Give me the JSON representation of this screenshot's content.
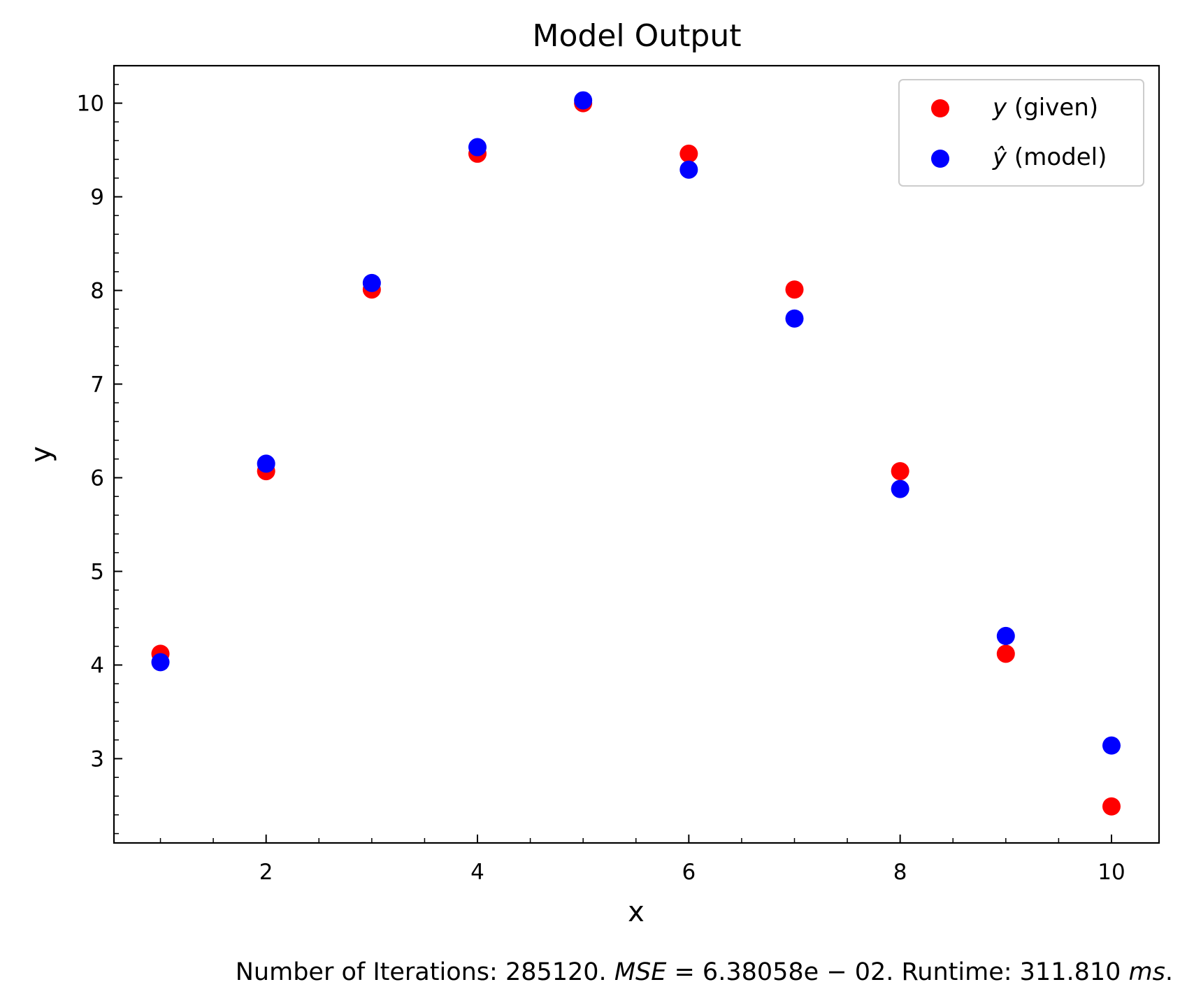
{
  "chart_data": {
    "type": "scatter",
    "title": "Model Output",
    "xlabel": "x",
    "ylabel": "y",
    "xlim": [
      0.56,
      10.45
    ],
    "ylim": [
      2.1,
      10.4
    ],
    "xticks": [
      2,
      4,
      6,
      8,
      10
    ],
    "yticks": [
      3,
      4,
      5,
      6,
      7,
      8,
      9,
      10
    ],
    "grid": false,
    "legend_position": "top-right",
    "x": [
      1,
      2,
      3,
      4,
      5,
      6,
      7,
      8,
      9,
      10
    ],
    "series": [
      {
        "name": "y (given)",
        "legend_math": "y",
        "legend_text": " (given)",
        "color": "#ff0000",
        "values": [
          4.12,
          6.07,
          8.01,
          9.46,
          10.0,
          9.46,
          8.01,
          6.07,
          4.12,
          2.49
        ]
      },
      {
        "name": "ŷ (model)",
        "legend_math": "ŷ",
        "legend_text": " (model)",
        "color": "#0000ff",
        "values": [
          4.03,
          6.15,
          8.08,
          9.53,
          10.03,
          9.29,
          7.7,
          5.88,
          4.31,
          3.14
        ]
      }
    ],
    "caption": {
      "iterations_text": "Number of Iterations: 285120. ",
      "mse_label": "MSE",
      "mse_value": " = 6.38058e − 02. Runtime: 311.810 ",
      "runtime_unit": "ms",
      "end": "."
    }
  }
}
